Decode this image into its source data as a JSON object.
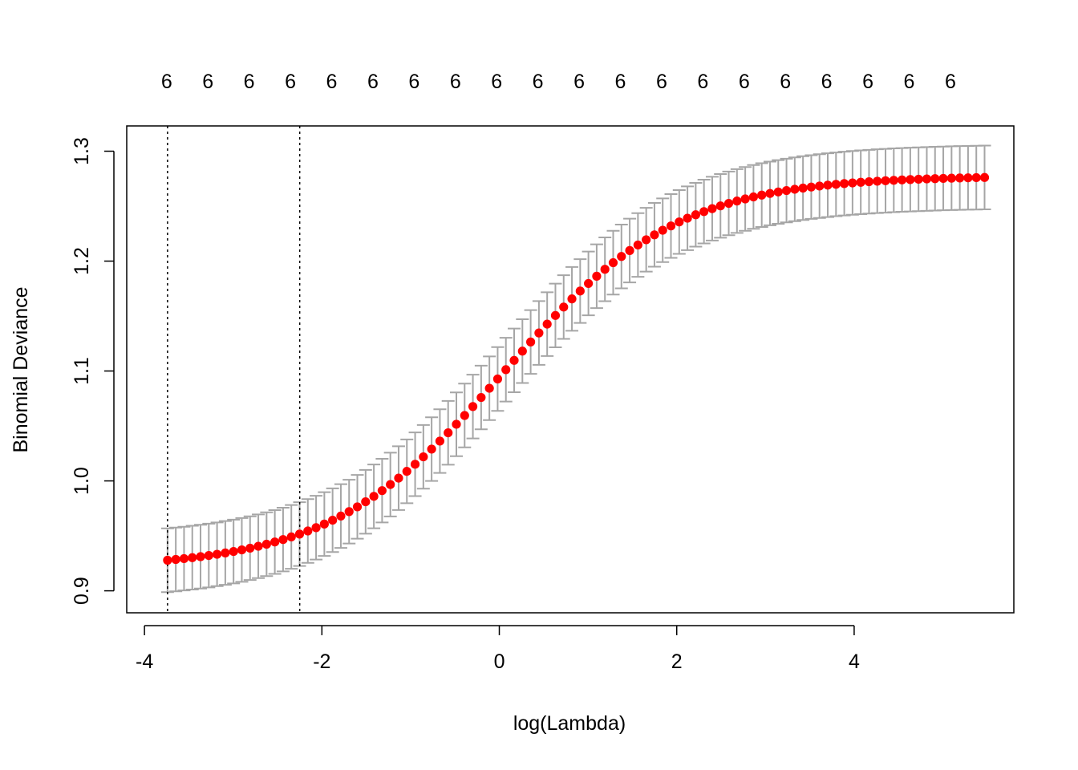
{
  "chart_data": {
    "type": "scatter",
    "xlabel": "log(Lambda)",
    "ylabel": "Binomial Deviance",
    "xlim": [
      -4.2,
      5.8
    ],
    "ylim": [
      0.88,
      1.323
    ],
    "x_ticks": [
      -4,
      -2,
      0,
      2,
      4
    ],
    "x_tick_labels": [
      "-4",
      "-2",
      "0",
      "2",
      "4"
    ],
    "y_ticks": [
      0.9,
      1.0,
      1.1,
      1.2,
      1.3
    ],
    "y_tick_labels": [
      "0.9",
      "1.0",
      "1.1",
      "1.2",
      "1.3"
    ],
    "top_axis": {
      "x": [
        -3.75,
        -3.285,
        -2.82,
        -2.355,
        -1.89,
        -1.425,
        -0.96,
        -0.495,
        -0.03,
        0.435,
        0.9,
        1.365,
        1.83,
        2.295,
        2.76,
        3.225,
        3.69,
        4.155,
        4.62,
        5.085
      ],
      "labels": [
        "6",
        "6",
        "6",
        "6",
        "6",
        "6",
        "6",
        "6",
        "6",
        "6",
        "6",
        "6",
        "6",
        "6",
        "6",
        "6",
        "6",
        "6",
        "6",
        "6"
      ]
    },
    "vlines": [
      -3.74,
      -2.25
    ],
    "curve_model": {
      "x_start": -3.74,
      "x_end": 5.47,
      "n_points": 100,
      "y_low": 0.9205,
      "y_high": 1.2775,
      "center": 0.05,
      "width": 0.98,
      "error_half_width": 0.029
    },
    "colors": {
      "points": "#ff0000",
      "error_bars": "#a6a6a6",
      "axes": "#000000",
      "vlines": "#000000"
    }
  }
}
